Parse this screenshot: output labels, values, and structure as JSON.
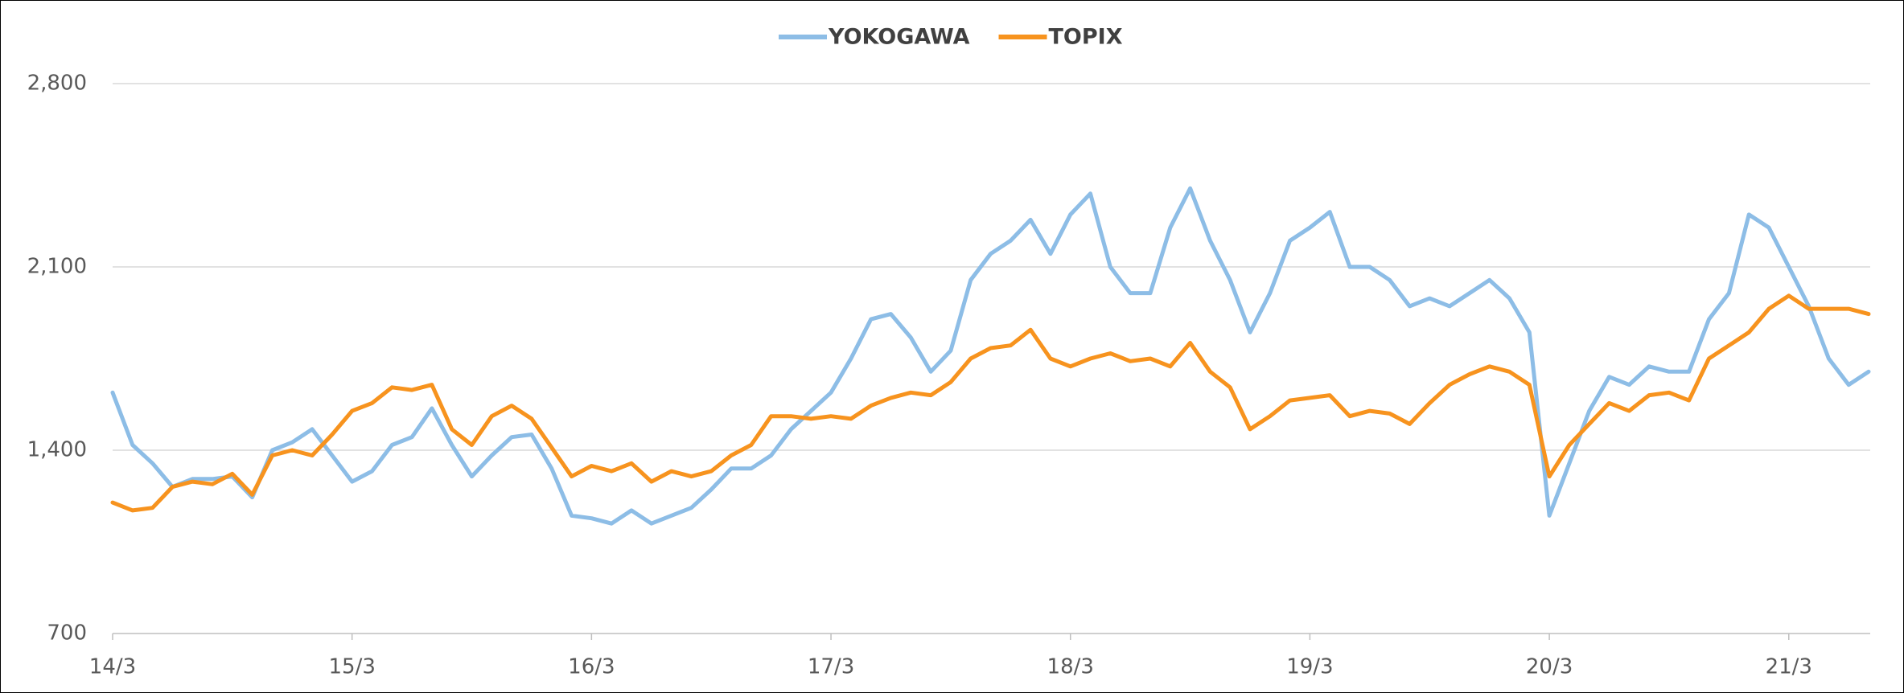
{
  "chart_data": {
    "type": "line",
    "categories": [
      "14/3",
      null,
      null,
      null,
      null,
      null,
      null,
      null,
      null,
      null,
      null,
      null,
      "15/3",
      null,
      null,
      null,
      null,
      null,
      null,
      null,
      null,
      null,
      null,
      null,
      "16/3",
      null,
      null,
      null,
      null,
      null,
      null,
      null,
      null,
      null,
      null,
      null,
      "17/3",
      null,
      null,
      null,
      null,
      null,
      null,
      null,
      null,
      null,
      null,
      null,
      "18/3",
      null,
      null,
      null,
      null,
      null,
      null,
      null,
      null,
      null,
      null,
      null,
      "19/3",
      null,
      null,
      null,
      null,
      null,
      null,
      null,
      null,
      null,
      null,
      null,
      "20/3",
      null,
      null,
      null,
      null,
      null,
      null,
      null,
      null,
      null,
      null,
      null,
      "21/3",
      null,
      null,
      null,
      null
    ],
    "series": [
      {
        "name": "YOKOGAWA",
        "color": "#8dbde6",
        "values": [
          1620,
          1420,
          1350,
          1260,
          1290,
          1290,
          1300,
          1220,
          1400,
          1430,
          1480,
          1380,
          1280,
          1320,
          1420,
          1450,
          1560,
          1420,
          1300,
          1380,
          1450,
          1460,
          1330,
          1150,
          1140,
          1120,
          1170,
          1120,
          1150,
          1180,
          1250,
          1330,
          1330,
          1380,
          1480,
          1550,
          1620,
          1750,
          1900,
          1920,
          1830,
          1700,
          1780,
          2050,
          2150,
          2200,
          2280,
          2150,
          2300,
          2380,
          2100,
          2000,
          2000,
          2250,
          2400,
          2200,
          2050,
          1850,
          2000,
          2200,
          2250,
          2310,
          2100,
          2100,
          2050,
          1950,
          1980,
          1950,
          2000,
          2050,
          1980,
          1850,
          1150,
          1350,
          1550,
          1680,
          1650,
          1720,
          1700,
          1700,
          1900,
          2000,
          2300,
          2250,
          2100,
          1950,
          1750,
          1650,
          1700
        ]
      },
      {
        "name": "TOPIX",
        "color": "#f7931e",
        "values": [
          1200,
          1170,
          1180,
          1260,
          1280,
          1270,
          1310,
          1230,
          1380,
          1400,
          1380,
          1460,
          1550,
          1580,
          1640,
          1630,
          1650,
          1480,
          1420,
          1530,
          1570,
          1520,
          1410,
          1300,
          1340,
          1320,
          1350,
          1280,
          1320,
          1300,
          1320,
          1380,
          1420,
          1530,
          1530,
          1520,
          1530,
          1520,
          1570,
          1600,
          1620,
          1610,
          1660,
          1750,
          1790,
          1800,
          1860,
          1750,
          1720,
          1750,
          1770,
          1740,
          1750,
          1720,
          1810,
          1700,
          1640,
          1480,
          1530,
          1590,
          1600,
          1610,
          1530,
          1550,
          1540,
          1500,
          1580,
          1650,
          1690,
          1720,
          1700,
          1650,
          1300,
          1420,
          1500,
          1580,
          1550,
          1610,
          1620,
          1590,
          1750,
          1800,
          1850,
          1940,
          1990,
          1940,
          1940,
          1940,
          1920
        ]
      }
    ],
    "ylim": [
      700,
      2800
    ],
    "yticks": [
      700,
      {
        "value": 1400,
        "label": "1,400"
      },
      {
        "value": 2100,
        "label": "2,100"
      },
      {
        "value": 2800,
        "label": "2,800"
      }
    ],
    "grid": true,
    "legend": "top"
  }
}
